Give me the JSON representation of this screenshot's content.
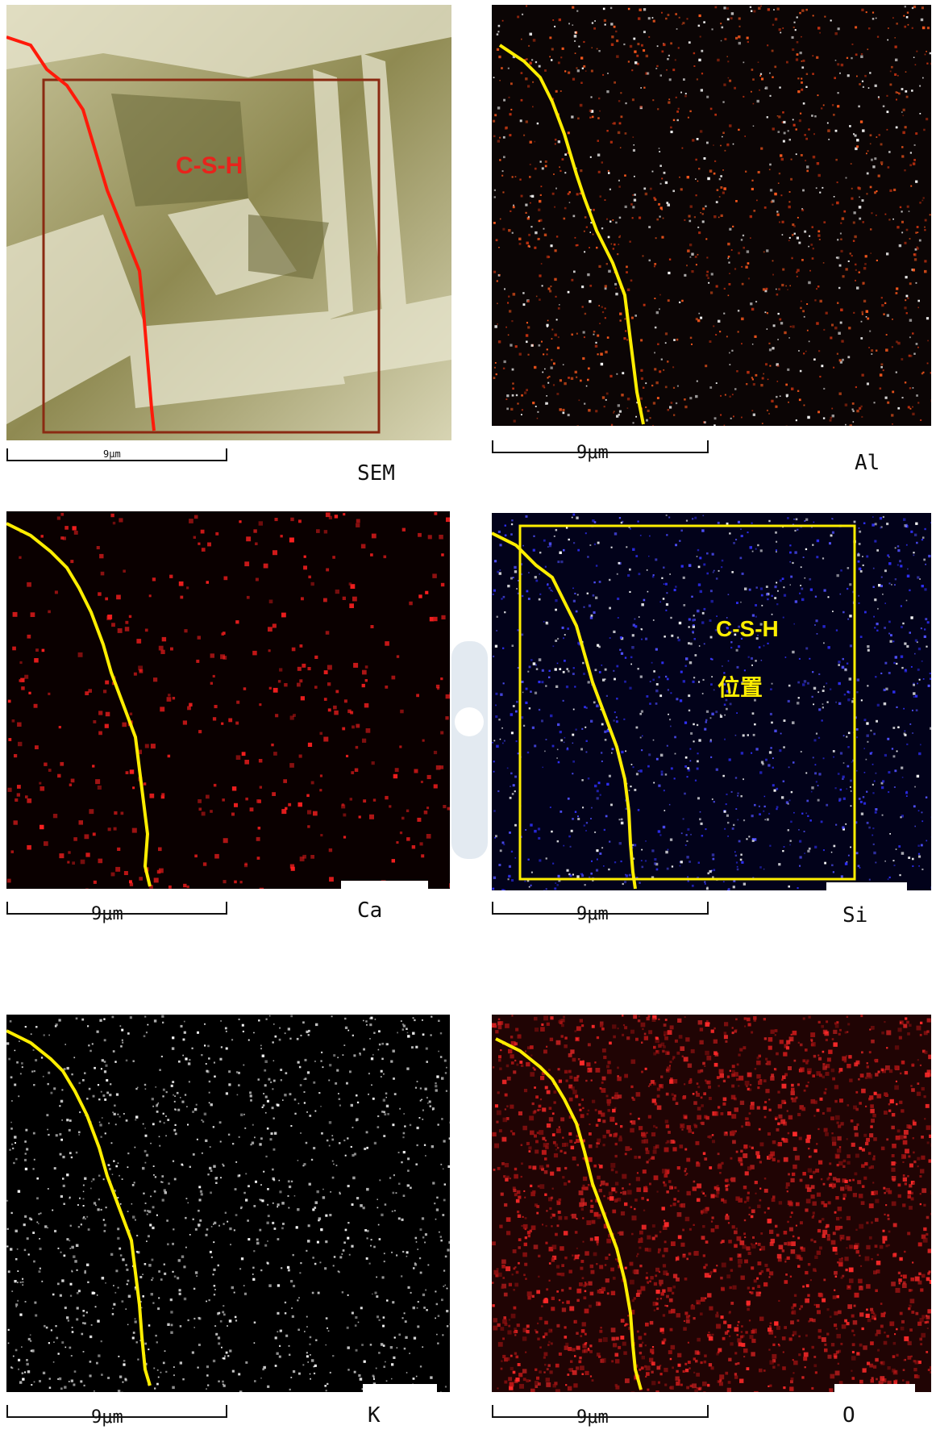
{
  "panels": [
    {
      "id": "sem",
      "label": "SEM",
      "scale": "9μm",
      "overlay_text": "C-S-H",
      "overlay_color": "#e8231c",
      "line_color": "#ff1a0a",
      "bg": "#a9a46e"
    },
    {
      "id": "al",
      "label": "Al",
      "scale": "9μm",
      "line_color": "#ffee00",
      "dot_colors": [
        "#ff5a1e",
        "#ffffff",
        "#c03010"
      ]
    },
    {
      "id": "ca",
      "label": "Ca",
      "scale": "9μm",
      "line_color": "#ffee00",
      "dot_colors": [
        "#ff2020",
        "#d01818"
      ]
    },
    {
      "id": "si",
      "label": "Si",
      "scale": "9μm",
      "overlay_text": "C-S-H",
      "overlay_text_2": "位置",
      "overlay_color": "#ffee00",
      "line_color": "#ffee00",
      "dot_colors": [
        "#3030ff",
        "#ffffff",
        "#5050ff"
      ]
    },
    {
      "id": "k",
      "label": "K",
      "scale": "9μm",
      "line_color": "#ffee00",
      "dot_colors": [
        "#ffffff",
        "#cccccc"
      ]
    },
    {
      "id": "o",
      "label": "O",
      "scale": "9μm",
      "line_color": "#ffee00",
      "dot_colors": [
        "#c01818",
        "#ff2a2a",
        "#901010"
      ]
    }
  ]
}
